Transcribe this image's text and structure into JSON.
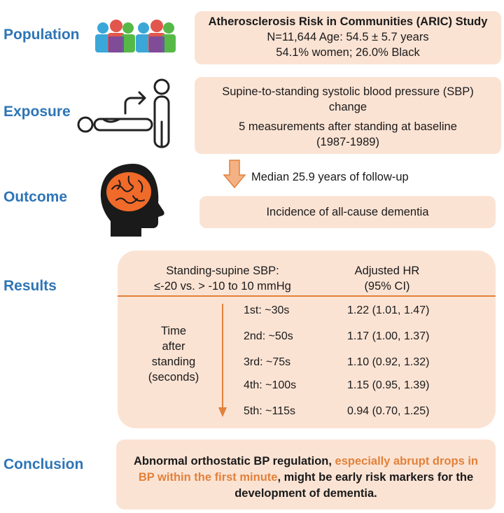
{
  "sections": {
    "population": "Population",
    "exposure": "Exposure",
    "outcome": "Outcome",
    "results": "Results",
    "conclusion": "Conclusion"
  },
  "population_box": {
    "title": "Atherosclerosis Risk in Communities (ARIC) Study",
    "line1": "N=11,644  Age: 54.5 ±  5.7 years",
    "line2": "54.1% women;  26.0% Black"
  },
  "exposure_box": {
    "line1": "Supine-to-standing systolic blood pressure (SBP)",
    "line2": "change",
    "line3": "5 measurements after standing at baseline",
    "line4": "(1987-1989)"
  },
  "followup": "Median 25.9 years of follow-up",
  "outcome_box": "Incidence of all-cause dementia",
  "results": {
    "col1_header_line1": "Standing-supine SBP:",
    "col1_header_line2": "≤-20  vs. > -10 to 10 mmHg",
    "col2_header_line1": "Adjusted HR",
    "col2_header_line2": "(95% CI)",
    "time_label": [
      "Time",
      "after",
      "standing",
      "(seconds)"
    ],
    "rows": [
      {
        "time": "1st: ~30s",
        "hr": "1.22 (1.01, 1.47)"
      },
      {
        "time": "2nd: ~50s",
        "hr": "1.17 (1.00, 1.37)"
      },
      {
        "time": "3rd: ~75s",
        "hr": "1.10 (0.92, 1.32)"
      },
      {
        "time": "4th: ~100s",
        "hr": "1.15 (0.95, 1.39)"
      },
      {
        "time": "5th: ~115s",
        "hr": "0.94 (0.70, 1.25)"
      }
    ]
  },
  "conclusion_box": {
    "part1": "Abnormal orthostatic BP regulation, ",
    "part2": "especially abrupt drops in BP within the first minute",
    "part3": ", might be early risk markers for the development of dementia."
  },
  "colors": {
    "section_label": "#2e75b6",
    "box_fill": "#fbe3d4",
    "accent": "#e2813a"
  },
  "icons": [
    "people-group-icon",
    "supine-to-standing-icon",
    "brain-head-icon",
    "down-arrow-icon"
  ]
}
